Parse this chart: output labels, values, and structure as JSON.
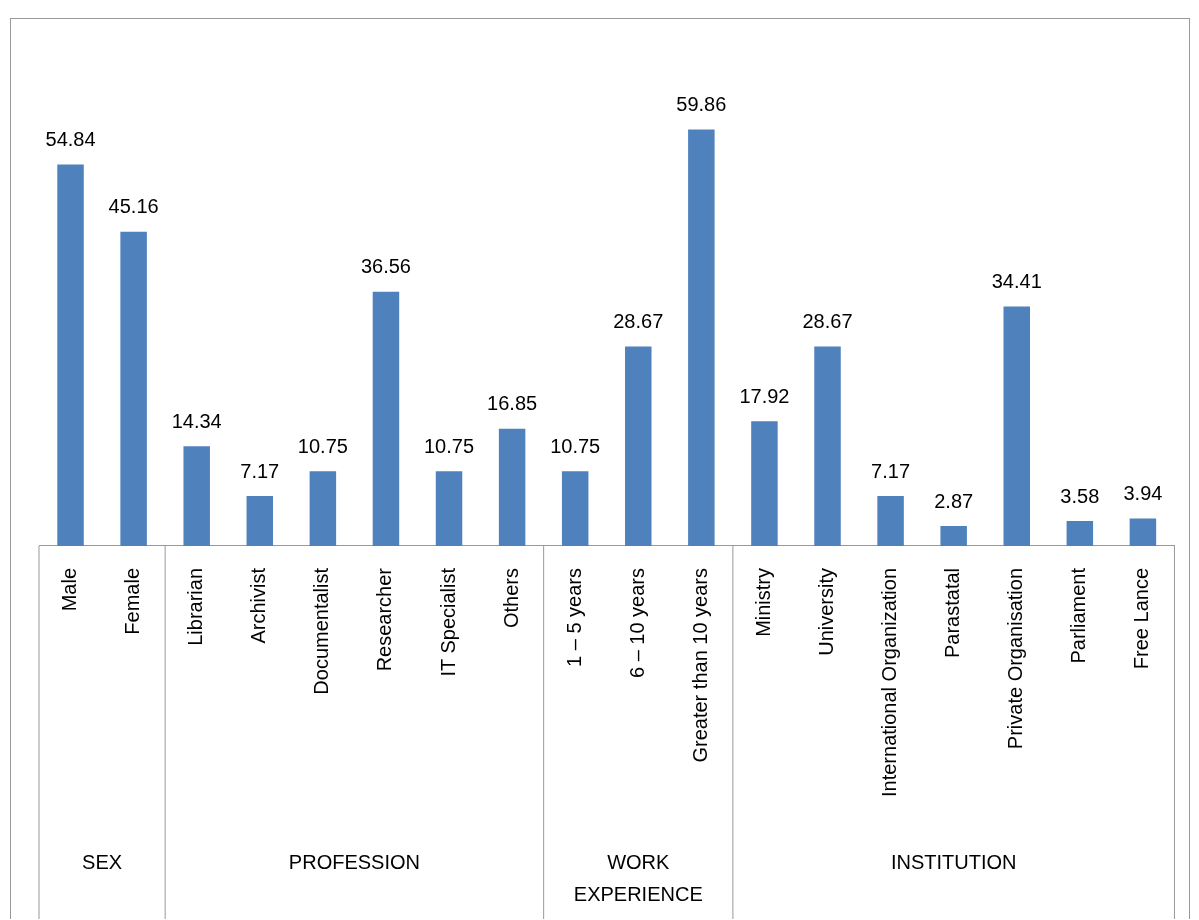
{
  "chart_data": {
    "type": "bar",
    "categories": [
      "Male",
      "Female",
      "Librarian",
      "Archivist",
      "Documentalist",
      "Researcher",
      "IT Specialist",
      "Others",
      "1 – 5 years",
      "6 – 10 years",
      "Greater than 10 years",
      "Ministry",
      "University",
      "International Organization",
      "Parastatal",
      "Private Organisation",
      "Parliament",
      "Free Lance"
    ],
    "values": [
      54.84,
      45.16,
      14.34,
      7.17,
      10.75,
      36.56,
      10.75,
      16.85,
      10.75,
      28.67,
      59.86,
      17.92,
      28.67,
      7.17,
      2.87,
      34.41,
      3.58,
      3.94
    ],
    "color": "#4f81bd",
    "data_labels": true,
    "annotations": [
      "SEX",
      "PROFESSION",
      "WORK EXPERIENCE",
      "INSTITUTION"
    ],
    "grid": false,
    "legend": false
  }
}
